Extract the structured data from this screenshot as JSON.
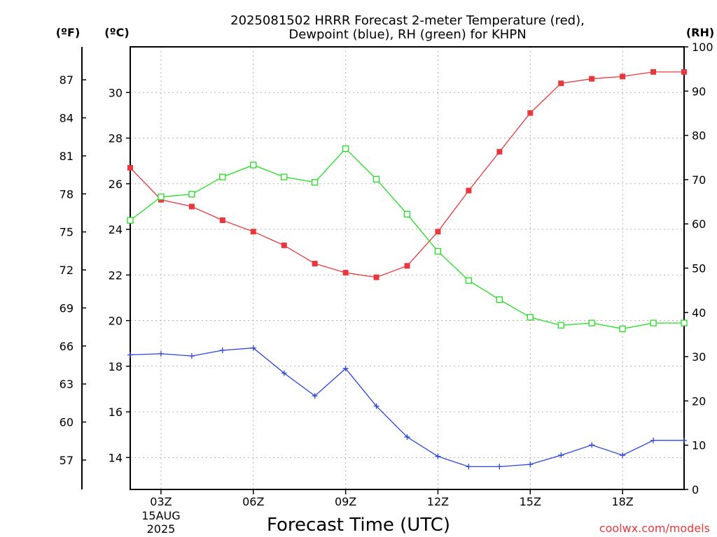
{
  "chart_data": {
    "type": "line",
    "title_lines": [
      "2025081502 HRRR Forecast 2-meter Temperature (red),",
      "Dewpoint (blue), RH (green) for KHPN"
    ],
    "xlabel": "Forecast Time (UTC)",
    "units": {
      "fahrenheit": "(ºF)",
      "celsius": "(ºC)",
      "rh": "(RH)"
    },
    "credit": "coolwx.com/models",
    "x": [
      2,
      3,
      4,
      5,
      6,
      7,
      8,
      9,
      10,
      11,
      12,
      13,
      14,
      15,
      16,
      17,
      18,
      19,
      20
    ],
    "xlim": [
      2,
      20
    ],
    "x_ticks": [
      {
        "x": 3,
        "label": "03Z",
        "sublabels": [
          "15AUG",
          "2025"
        ]
      },
      {
        "x": 6,
        "label": "06Z",
        "sublabels": []
      },
      {
        "x": 9,
        "label": "09Z",
        "sublabels": []
      },
      {
        "x": 12,
        "label": "12Z",
        "sublabels": []
      },
      {
        "x": 15,
        "label": "15Z",
        "sublabels": []
      },
      {
        "x": 18,
        "label": "18Z",
        "sublabels": []
      }
    ],
    "y_celsius": {
      "ylim": [
        12.6,
        32.0
      ],
      "ticks": [
        "14",
        "16",
        "18",
        "20",
        "22",
        "24",
        "26",
        "28",
        "30"
      ]
    },
    "y_fahrenheit": {
      "ticks": [
        "57",
        "60",
        "63",
        "66",
        "69",
        "72",
        "75",
        "78",
        "81",
        "84",
        "87"
      ]
    },
    "y_rh": {
      "ylim": [
        0,
        100
      ],
      "ticks": [
        "0",
        "10",
        "20",
        "30",
        "40",
        "50",
        "60",
        "70",
        "80",
        "90",
        "100"
      ]
    },
    "series": [
      {
        "name": "Temperature",
        "color": "#e8383d",
        "marker": "filled-square",
        "axis": "celsius",
        "values": [
          26.7,
          25.3,
          25.0,
          24.4,
          23.9,
          23.3,
          22.5,
          22.1,
          21.9,
          22.4,
          23.9,
          25.7,
          27.4,
          29.1,
          30.4,
          30.6,
          30.7,
          30.9,
          30.9
        ]
      },
      {
        "name": "Dewpoint",
        "color": "#2a44e0",
        "marker": "plus",
        "axis": "celsius",
        "values": [
          18.5,
          18.55,
          18.45,
          18.7,
          18.8,
          17.7,
          16.7,
          17.9,
          16.25,
          14.9,
          14.05,
          13.6,
          13.6,
          13.7,
          14.1,
          14.55,
          14.1,
          14.75,
          14.75
        ]
      },
      {
        "name": "RH",
        "color": "#22dd22",
        "marker": "hollow-square",
        "axis": "rh",
        "values": [
          60.8,
          66.1,
          66.7,
          70.6,
          73.3,
          70.6,
          69.4,
          77.0,
          70.1,
          62.2,
          53.8,
          47.2,
          42.9,
          38.9,
          37.1,
          37.6,
          36.3,
          37.6,
          37.6
        ]
      }
    ],
    "grid": true
  }
}
